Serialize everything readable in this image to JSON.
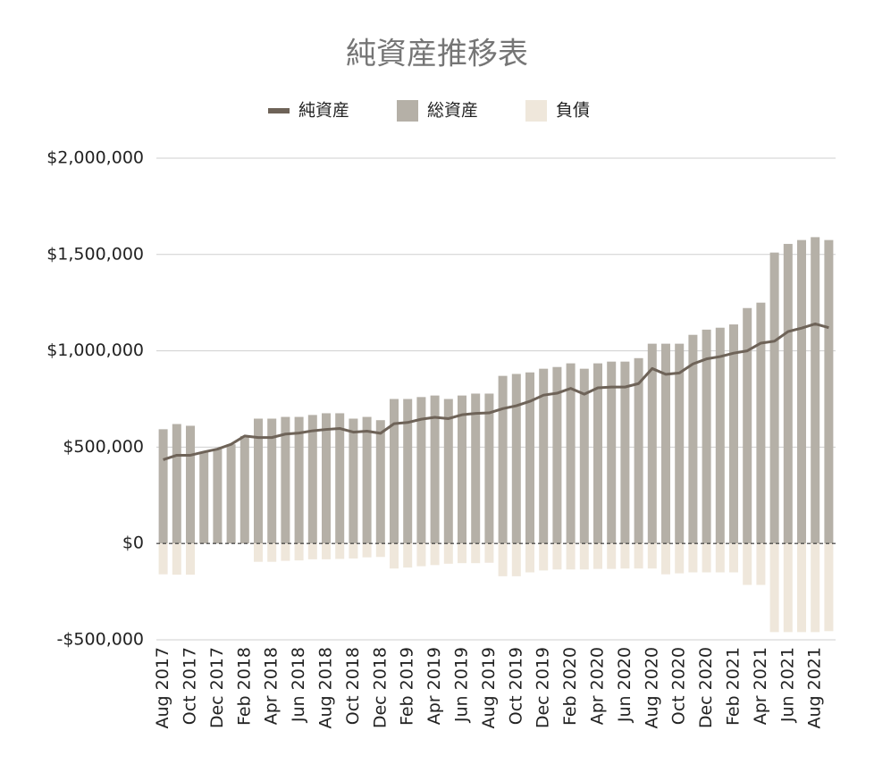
{
  "chart_data": {
    "type": "bar-line",
    "title": "純資産推移表",
    "categories": [
      "Aug 2017",
      null,
      "Oct 2017",
      null,
      "Dec 2017",
      null,
      "Feb 2018",
      null,
      "Apr 2018",
      null,
      "Jun 2018",
      null,
      "Aug 2018",
      null,
      "Oct 2018",
      null,
      "Dec 2018",
      null,
      "Feb 2019",
      null,
      "Apr 2019",
      null,
      "Jun 2019",
      null,
      "Aug 2019",
      null,
      "Oct 2019",
      null,
      "Dec 2019",
      null,
      "Feb 2020",
      null,
      "Apr 2020",
      null,
      "Jun 2020",
      null,
      "Aug 2020",
      null,
      "Oct 2020",
      null,
      "Dec 2020",
      null,
      "Feb 2021",
      null,
      "Apr 2021",
      null,
      "Jun 2021",
      null,
      "Aug 2021",
      null
    ],
    "series": [
      {
        "name": "純資産",
        "type": "line",
        "color": "#6e6358",
        "values": [
          435000,
          458000,
          458000,
          475000,
          490000,
          515000,
          558000,
          550000,
          550000,
          568000,
          573000,
          585000,
          592000,
          597000,
          578000,
          583000,
          572000,
          622000,
          628000,
          645000,
          655000,
          648000,
          668000,
          675000,
          678000,
          700000,
          715000,
          738000,
          770000,
          780000,
          805000,
          775000,
          808000,
          812000,
          812000,
          830000,
          908000,
          878000,
          885000,
          932000,
          958000,
          970000,
          988000,
          1000000,
          1040000,
          1050000,
          1100000,
          1118000,
          1140000,
          1120000
        ]
      },
      {
        "name": "総資産",
        "type": "bar",
        "color": "#b5b0a7",
        "values": [
          593000,
          620000,
          611000,
          475000,
          490000,
          515000,
          558000,
          648000,
          648000,
          657000,
          657000,
          667000,
          676000,
          676000,
          648000,
          657000,
          640000,
          750000,
          750000,
          760000,
          768000,
          750000,
          768000,
          778000,
          778000,
          870000,
          880000,
          888000,
          907000,
          916000,
          935000,
          907000,
          935000,
          944000,
          944000,
          962000,
          1037000,
          1037000,
          1037000,
          1083000,
          1110000,
          1120000,
          1137000,
          1222000,
          1250000,
          1510000,
          1555000,
          1575000,
          1590000,
          1575000
        ]
      },
      {
        "name": "負債",
        "type": "bar",
        "color": "#efe7db",
        "values": [
          -160000,
          -162000,
          -162000,
          0,
          0,
          0,
          0,
          -95000,
          -95000,
          -90000,
          -88000,
          -82000,
          -82000,
          -80000,
          -78000,
          -72000,
          -70000,
          -130000,
          -125000,
          -118000,
          -112000,
          -105000,
          -102000,
          -102000,
          -100000,
          -170000,
          -170000,
          -150000,
          -140000,
          -135000,
          -135000,
          -135000,
          -132000,
          -132000,
          -130000,
          -130000,
          -130000,
          -160000,
          -155000,
          -150000,
          -150000,
          -150000,
          -150000,
          -215000,
          -215000,
          -460000,
          -460000,
          -460000,
          -460000,
          -455000
        ]
      }
    ],
    "ylim": [
      -500000,
      2000000
    ],
    "yticks": [
      {
        "value": -500000,
        "label": "-$500,000"
      },
      {
        "value": 0,
        "label": "$0"
      },
      {
        "value": 500000,
        "label": "$500,000"
      },
      {
        "value": 1000000,
        "label": "$1,000,000"
      },
      {
        "value": 1500000,
        "label": "$1,500,000"
      },
      {
        "value": 2000000,
        "label": "$2,000,000"
      }
    ],
    "grid": true,
    "legend": "top"
  }
}
